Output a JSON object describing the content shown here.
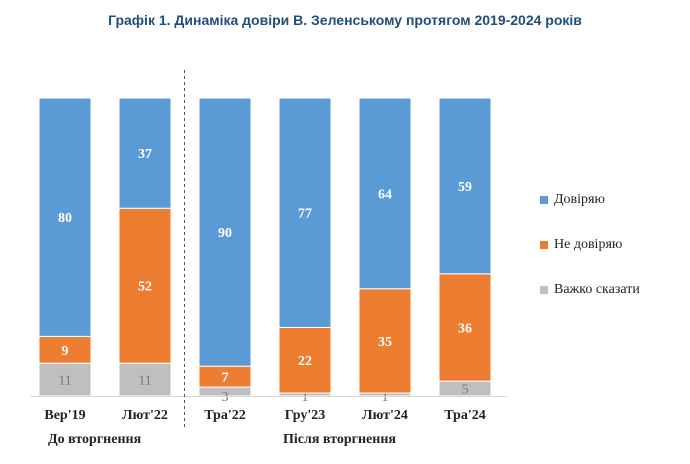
{
  "chart_data": {
    "type": "bar",
    "stacked": true,
    "title": "Графік 1. Динаміка довіри В. Зеленському протягом 2019-2024 років",
    "categories": [
      "Вер'19",
      "Лют'22",
      "Тра'22",
      "Гру'23",
      "Лют'24",
      "Тра'24"
    ],
    "series": [
      {
        "name": "Довіряю",
        "color": "#5b9bd5",
        "values": [
          80,
          37,
          90,
          77,
          64,
          59
        ]
      },
      {
        "name": "Не довіряю",
        "color": "#ed7d31",
        "values": [
          9,
          52,
          7,
          22,
          35,
          36
        ]
      },
      {
        "name": "Важко сказати",
        "color": "#bfbfbf",
        "values": [
          11,
          11,
          3,
          1,
          1,
          5
        ]
      }
    ],
    "groups": [
      {
        "label": "До вторгнення",
        "from": 0,
        "to": 1
      },
      {
        "label": "Після вторгнення",
        "from": 2,
        "to": 5
      }
    ],
    "ylim": [
      0,
      100
    ],
    "xlabel": "",
    "ylabel": ""
  }
}
